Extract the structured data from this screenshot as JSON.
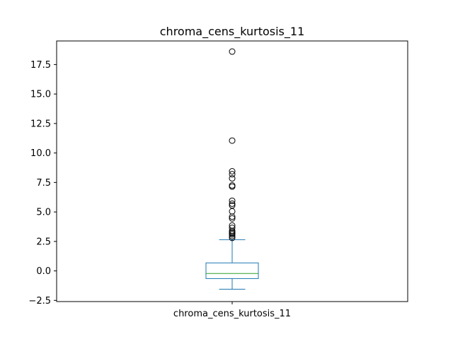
{
  "chart_data": {
    "type": "box",
    "title": "chroma_cens_kurtosis_11",
    "categories": [
      "chroma_cens_kurtosis_11"
    ],
    "xlabel": "",
    "ylabel": "",
    "ylim": [
      -2.6,
      19.5
    ],
    "yticks": [
      -2.5,
      0.0,
      2.5,
      5.0,
      7.5,
      10.0,
      12.5,
      15.0,
      17.5
    ],
    "ytick_labels": [
      "−2.5",
      "0.0",
      "2.5",
      "5.0",
      "7.5",
      "10.0",
      "12.5",
      "15.0",
      "17.5"
    ],
    "grid": false,
    "box": {
      "whisker_low": -1.55,
      "q1": -0.65,
      "median": -0.22,
      "q3": 0.68,
      "whisker_high": 2.65
    },
    "outliers": [
      18.6,
      11.05,
      8.45,
      8.2,
      7.85,
      7.25,
      7.15,
      5.95,
      5.7,
      5.55,
      5.05,
      4.6,
      4.45,
      3.85,
      3.65,
      3.4,
      3.3,
      3.2,
      3.1,
      2.95,
      2.8
    ],
    "colors": {
      "box": "#1f77b4",
      "median": "#2ca02c",
      "outlier_edge": "#000000",
      "axes": "#000000"
    }
  }
}
